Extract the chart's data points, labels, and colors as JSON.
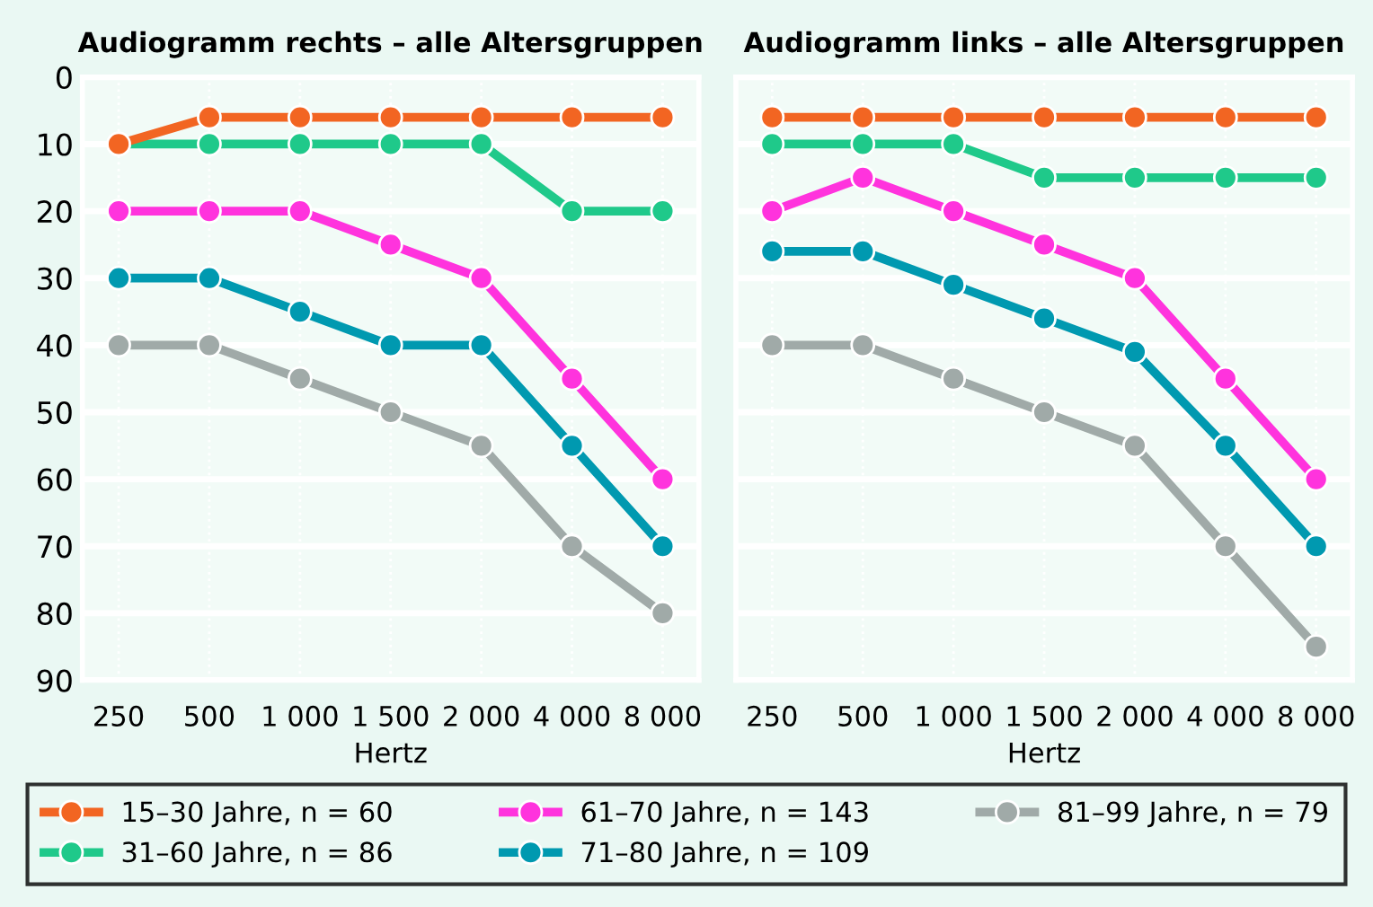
{
  "chart_data": [
    {
      "type": "line",
      "title": "Audiogramm rechts – alle Altersgruppen",
      "xlabel": "Hertz",
      "categories": [
        "250",
        "500",
        "1 000",
        "1 500",
        "2 000",
        "4 000",
        "8 000"
      ],
      "ylim": [
        90,
        0
      ],
      "yticks": [
        0,
        10,
        20,
        30,
        40,
        50,
        60,
        70,
        80,
        90
      ],
      "grid": true,
      "marker": "circle",
      "legend": "bottom",
      "series": [
        {
          "name": "15–30 Jahre, n = 60",
          "color": "#f26522",
          "values": [
            10,
            6,
            6,
            6,
            6,
            6,
            6
          ]
        },
        {
          "name": "31–60 Jahre, n = 86",
          "color": "#1fc98a",
          "values": [
            10,
            10,
            10,
            10,
            10,
            20,
            20
          ]
        },
        {
          "name": "61–70 Jahre, n = 143",
          "color": "#ff33dd",
          "values": [
            20,
            20,
            20,
            25,
            30,
            45,
            60
          ]
        },
        {
          "name": "71–80 Jahre, n = 109",
          "color": "#0099b0",
          "values": [
            30,
            30,
            35,
            40,
            40,
            55,
            70
          ]
        },
        {
          "name": "81–99 Jahre, n = 79",
          "color": "#a0aaa8",
          "values": [
            40,
            40,
            45,
            50,
            55,
            70,
            80
          ]
        }
      ]
    },
    {
      "type": "line",
      "title": "Audiogramm links – alle Altersgruppen",
      "xlabel": "Hertz",
      "categories": [
        "250",
        "500",
        "1 000",
        "1 500",
        "2 000",
        "4 000",
        "8 000"
      ],
      "ylim": [
        90,
        0
      ],
      "yticks": [
        0,
        10,
        20,
        30,
        40,
        50,
        60,
        70,
        80,
        90
      ],
      "grid": true,
      "marker": "circle",
      "tick_labels": "x",
      "series": [
        {
          "color": "#f26522",
          "values": [
            6,
            6,
            6,
            6,
            6,
            6,
            6
          ]
        },
        {
          "color": "#1fc98a",
          "values": [
            10,
            10,
            10,
            15,
            15,
            15,
            15
          ]
        },
        {
          "color": "#ff33dd",
          "values": [
            20,
            15,
            20,
            25,
            30,
            45,
            60
          ]
        },
        {
          "color": "#0099b0",
          "values": [
            26,
            26,
            31,
            36,
            41,
            55,
            70
          ]
        },
        {
          "color": "#a0aaa8",
          "values": [
            40,
            40,
            45,
            50,
            55,
            70,
            85
          ]
        }
      ]
    }
  ]
}
